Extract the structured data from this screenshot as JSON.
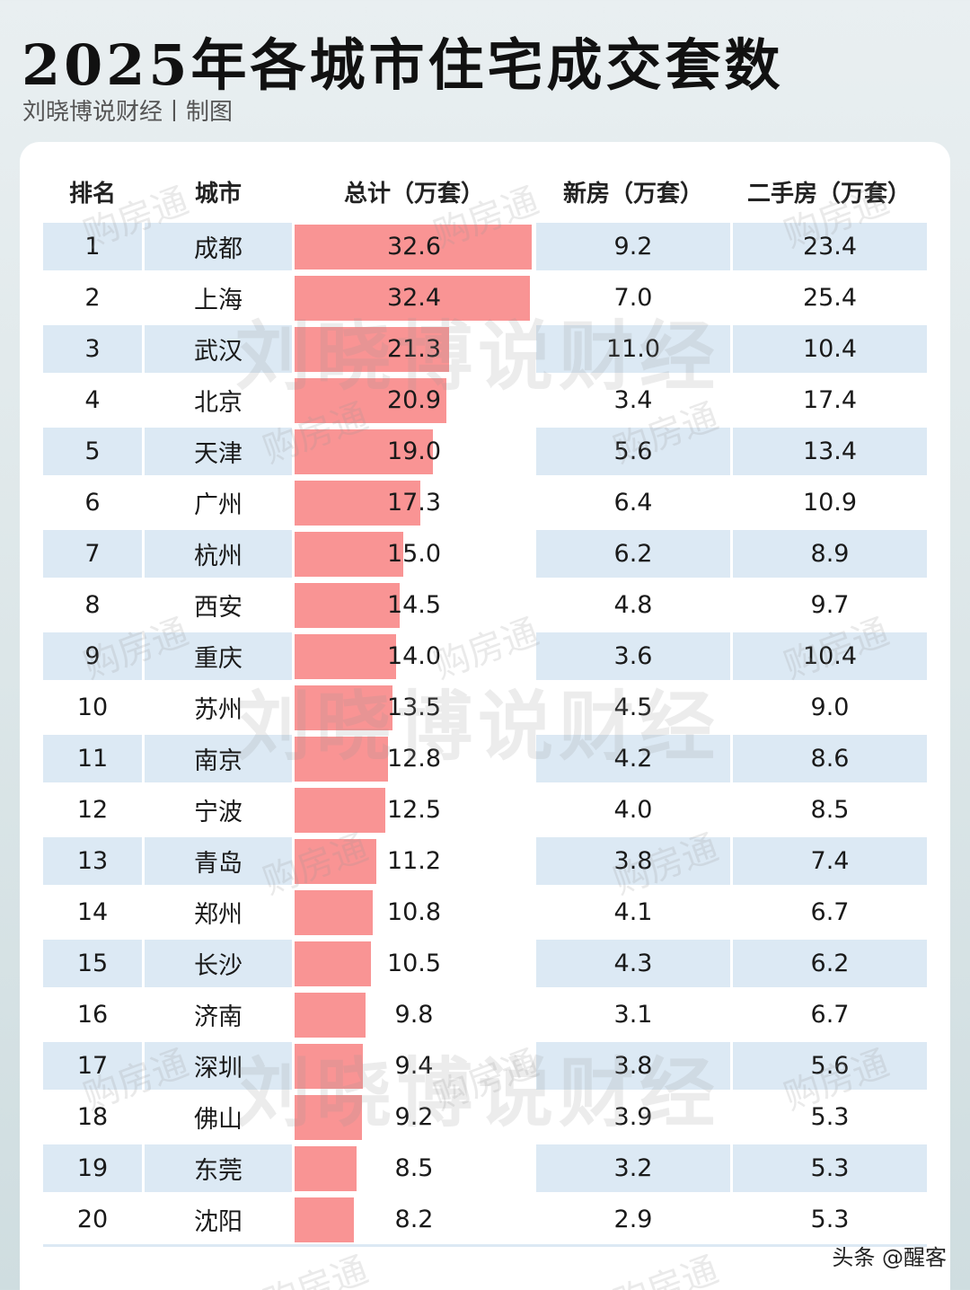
{
  "header": {
    "title": "2025年各城市住宅成交套数",
    "subtitle": "刘晓博说财经丨制图"
  },
  "table": {
    "columns": [
      "排名",
      "城市",
      "总计（万套）",
      "新房（万套）",
      "二手房（万套）"
    ],
    "rows": [
      {
        "rank": "1",
        "city": "成都",
        "total": "32.6",
        "new": "9.2",
        "used": "23.4"
      },
      {
        "rank": "2",
        "city": "上海",
        "total": "32.4",
        "new": "7.0",
        "used": "25.4"
      },
      {
        "rank": "3",
        "city": "武汉",
        "total": "21.3",
        "new": "11.0",
        "used": "10.4"
      },
      {
        "rank": "4",
        "city": "北京",
        "total": "20.9",
        "new": "3.4",
        "used": "17.4"
      },
      {
        "rank": "5",
        "city": "天津",
        "total": "19.0",
        "new": "5.6",
        "used": "13.4"
      },
      {
        "rank": "6",
        "city": "广州",
        "total": "17.3",
        "new": "6.4",
        "used": "10.9"
      },
      {
        "rank": "7",
        "city": "杭州",
        "total": "15.0",
        "new": "6.2",
        "used": "8.9"
      },
      {
        "rank": "8",
        "city": "西安",
        "total": "14.5",
        "new": "4.8",
        "used": "9.7"
      },
      {
        "rank": "9",
        "city": "重庆",
        "total": "14.0",
        "new": "3.6",
        "used": "10.4"
      },
      {
        "rank": "10",
        "city": "苏州",
        "total": "13.5",
        "new": "4.5",
        "used": "9.0"
      },
      {
        "rank": "11",
        "city": "南京",
        "total": "12.8",
        "new": "4.2",
        "used": "8.6"
      },
      {
        "rank": "12",
        "city": "宁波",
        "total": "12.5",
        "new": "4.0",
        "used": "8.5"
      },
      {
        "rank": "13",
        "city": "青岛",
        "total": "11.2",
        "new": "3.8",
        "used": "7.4"
      },
      {
        "rank": "14",
        "city": "郑州",
        "total": "10.8",
        "new": "4.1",
        "used": "6.7"
      },
      {
        "rank": "15",
        "city": "长沙",
        "total": "10.5",
        "new": "4.3",
        "used": "6.2"
      },
      {
        "rank": "16",
        "city": "济南",
        "total": "9.8",
        "new": "3.1",
        "used": "6.7"
      },
      {
        "rank": "17",
        "city": "深圳",
        "total": "9.4",
        "new": "3.8",
        "used": "5.6"
      },
      {
        "rank": "18",
        "city": "佛山",
        "total": "9.2",
        "new": "3.9",
        "used": "5.3"
      },
      {
        "rank": "19",
        "city": "东莞",
        "total": "8.5",
        "new": "3.2",
        "used": "5.3"
      },
      {
        "rank": "20",
        "city": "沈阳",
        "total": "8.2",
        "new": "2.9",
        "used": "5.3"
      }
    ]
  },
  "watermarks": {
    "large": "刘晓博说财经",
    "small": "购房通"
  },
  "credit": "头条 @醒客",
  "colors": {
    "bar": "#f99494",
    "row_shade": "#dce9f4",
    "card": "#ffffff"
  },
  "chart_data": {
    "type": "table",
    "title": "2025年各城市住宅成交套数",
    "subtitle": "刘晓博说财经丨制图",
    "columns": [
      "排名",
      "城市",
      "总计（万套）",
      "新房（万套）",
      "二手房（万套）"
    ],
    "categories": [
      "成都",
      "上海",
      "武汉",
      "北京",
      "天津",
      "广州",
      "杭州",
      "西安",
      "重庆",
      "苏州",
      "南京",
      "宁波",
      "青岛",
      "郑州",
      "长沙",
      "济南",
      "深圳",
      "佛山",
      "东莞",
      "沈阳"
    ],
    "series": [
      {
        "name": "总计（万套）",
        "values": [
          32.6,
          32.4,
          21.3,
          20.9,
          19.0,
          17.3,
          15.0,
          14.5,
          14.0,
          13.5,
          12.8,
          12.5,
          11.2,
          10.8,
          10.5,
          9.8,
          9.4,
          9.2,
          8.5,
          8.2
        ],
        "rendering": "inline data bar"
      },
      {
        "name": "新房（万套）",
        "values": [
          9.2,
          7.0,
          11.0,
          3.4,
          5.6,
          6.4,
          6.2,
          4.8,
          3.6,
          4.5,
          4.2,
          4.0,
          3.8,
          4.1,
          4.3,
          3.1,
          3.8,
          3.9,
          3.2,
          2.9
        ]
      },
      {
        "name": "二手房（万套）",
        "values": [
          23.4,
          25.4,
          10.4,
          17.4,
          13.4,
          10.9,
          8.9,
          9.7,
          10.4,
          9.0,
          8.6,
          8.5,
          7.4,
          6.7,
          6.2,
          6.7,
          5.6,
          5.3,
          5.3,
          5.3
        ]
      }
    ],
    "bar_max": 32.6,
    "grid": false,
    "legend": "none"
  }
}
